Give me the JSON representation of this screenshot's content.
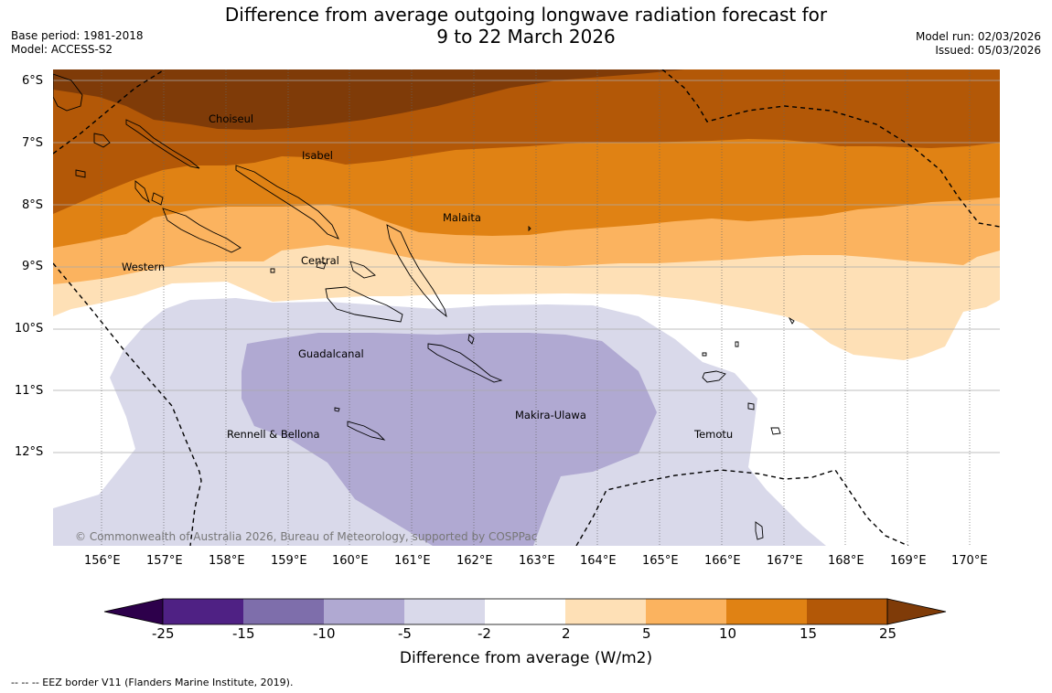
{
  "title_line1": "Difference from average outgoing longwave radiation forecast for",
  "title_line2": "9 to 22 March 2026",
  "meta": {
    "base_period": "Base period: 1981-2018",
    "model": "Model: ACCESS-S2",
    "model_run": "Model run: 02/03/2026",
    "issued": "Issued: 05/03/2026"
  },
  "axes": {
    "lat_labels": [
      "6°S",
      "7°S",
      "8°S",
      "9°S",
      "10°S",
      "11°S",
      "12°S"
    ],
    "lon_labels": [
      "156°E",
      "157°E",
      "158°E",
      "159°E",
      "160°E",
      "161°E",
      "162°E",
      "163°E",
      "164°E",
      "165°E",
      "166°E",
      "167°E",
      "168°E",
      "169°E",
      "170°E"
    ]
  },
  "regions": [
    "Choiseul",
    "Isabel",
    "Malaita",
    "Western",
    "Central",
    "Guadalcanal",
    "Makira-Ulawa",
    "Rennell & Bellona",
    "Temotu"
  ],
  "copyright": "© Commonwealth of Australia 2026, Bureau of Meteorology, supported by COSPPac",
  "colorbar": {
    "ticks": [
      "-25",
      "-15",
      "-10",
      "-5",
      "-2",
      "2",
      "5",
      "10",
      "15",
      "25"
    ],
    "colors": [
      "#4f2184",
      "#7e6eab",
      "#b0a9d2",
      "#d9d9ea",
      "#ffffff",
      "#fee0b6",
      "#fbb35f",
      "#e08214",
      "#b35807"
    ],
    "under_color": "#2d004b",
    "over_color": "#7f3b08",
    "label": "Difference from average (W/m2)"
  },
  "footer": "--  --  -- EEZ border V11 (Flanders Marine Institute, 2019)."
}
